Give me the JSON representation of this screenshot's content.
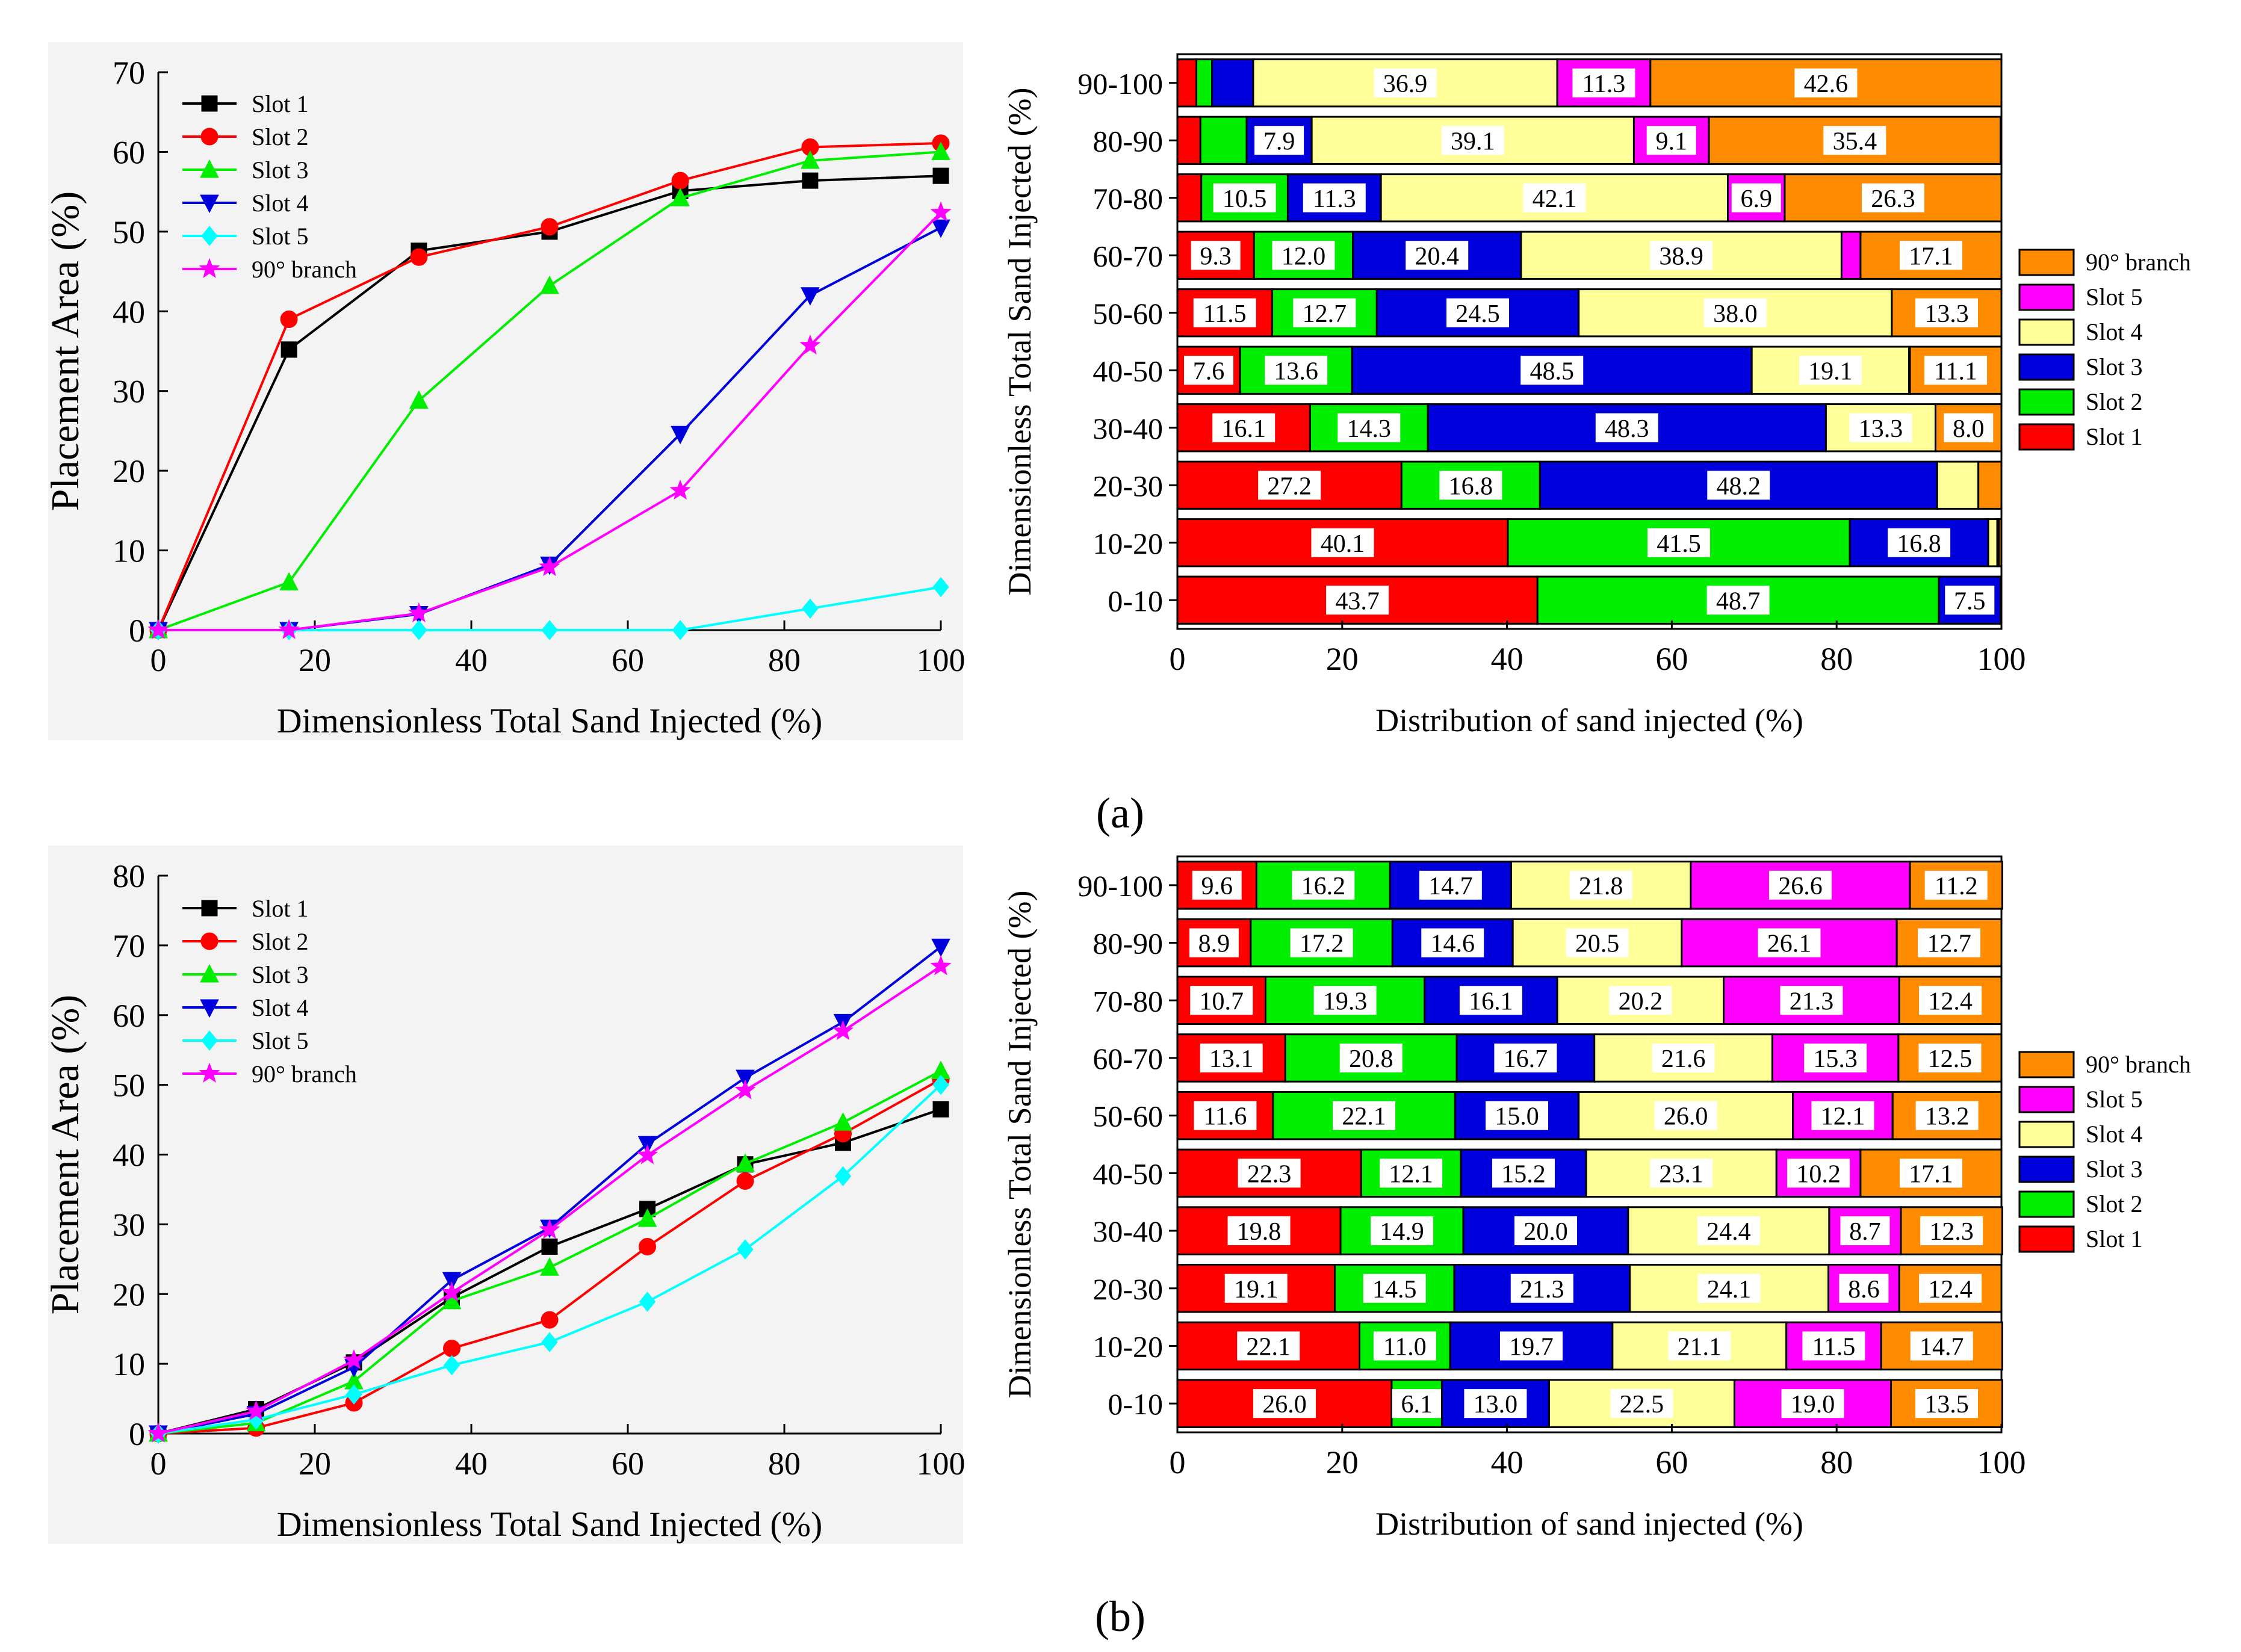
{
  "panel_labels": {
    "a": "(a)",
    "b": "(b)"
  },
  "colors": {
    "Slot 1": "#000000",
    "Slot 2": "#ff0000",
    "Slot 3": "#00ee00",
    "Slot 4": "#0000dd",
    "Slot 5": "#00ffff",
    "90° branch": "#ff00ff",
    "bar": {
      "Slot 1": "#ff0000",
      "Slot 2": "#00ee00",
      "Slot 3": "#0000dd",
      "Slot 4": "#ffff99",
      "Slot 5": "#ff00ff",
      "90° branch": "#ff8c00"
    }
  },
  "chart_data": [
    {
      "id": "a-line",
      "type": "line",
      "xlabel": "Dimensionless Total Sand Injected (%)",
      "ylabel": "Placement Area (%)",
      "xlim": [
        0,
        100
      ],
      "ylim": [
        0,
        70
      ],
      "xticks": [
        0,
        20,
        40,
        60,
        80,
        100
      ],
      "yticks": [
        0,
        10,
        20,
        30,
        40,
        50,
        60,
        70
      ],
      "series": [
        {
          "name": "Slot 1",
          "marker": "square",
          "x": [
            0,
            16.7,
            33.3,
            50,
            66.7,
            83.3,
            100
          ],
          "y": [
            0,
            35.2,
            47.6,
            50.0,
            55.1,
            56.4,
            57.0
          ]
        },
        {
          "name": "Slot 2",
          "marker": "circle",
          "x": [
            0,
            16.7,
            33.3,
            50,
            66.7,
            83.3,
            100
          ],
          "y": [
            0,
            39.0,
            46.8,
            50.6,
            56.4,
            60.6,
            61.1
          ]
        },
        {
          "name": "Slot 3",
          "marker": "triangle-up",
          "x": [
            0,
            16.7,
            33.3,
            50,
            66.7,
            83.3,
            100
          ],
          "y": [
            0,
            6.0,
            28.8,
            43.2,
            54.2,
            58.9,
            60.0
          ]
        },
        {
          "name": "Slot 4",
          "marker": "triangle-down",
          "x": [
            0,
            16.7,
            33.3,
            50,
            66.7,
            83.3,
            100
          ],
          "y": [
            0,
            0,
            2.0,
            8.2,
            24.6,
            42.0,
            50.5
          ]
        },
        {
          "name": "Slot 5",
          "marker": "diamond",
          "x": [
            0,
            16.7,
            33.3,
            50,
            66.7,
            83.3,
            100
          ],
          "y": [
            0,
            0,
            0,
            0,
            0,
            2.7,
            5.4
          ]
        },
        {
          "name": "90° branch",
          "marker": "star",
          "x": [
            0,
            16.7,
            33.3,
            50,
            66.7,
            83.3,
            100
          ],
          "y": [
            0,
            0,
            2.1,
            7.9,
            17.5,
            35.7,
            52.4
          ]
        }
      ],
      "legend": "top-left"
    },
    {
      "id": "a-bar",
      "type": "bar",
      "orientation": "horizontal-stacked",
      "xlabel": "Distribution of sand injected (%)",
      "ylabel": "Dimensionless Total Sand Injected (%)",
      "xlim": [
        0,
        100
      ],
      "xticks": [
        0,
        20,
        40,
        60,
        80,
        100
      ],
      "categories": [
        "0-10",
        "10-20",
        "20-30",
        "30-40",
        "40-50",
        "50-60",
        "60-70",
        "70-80",
        "80-90",
        "90-100"
      ],
      "series": [
        {
          "name": "Slot 1",
          "values": [
            43.7,
            40.1,
            27.2,
            16.1,
            7.6,
            11.5,
            9.3,
            2.9,
            2.8,
            2.3
          ]
        },
        {
          "name": "Slot 2",
          "values": [
            48.7,
            41.5,
            16.8,
            14.3,
            13.6,
            12.7,
            12.0,
            10.5,
            5.6,
            1.9
          ]
        },
        {
          "name": "Slot 3",
          "values": [
            7.5,
            16.8,
            48.2,
            48.3,
            48.5,
            24.5,
            20.4,
            11.3,
            7.9,
            5.0
          ]
        },
        {
          "name": "Slot 4",
          "values": [
            0.1,
            1.1,
            5.0,
            13.3,
            19.1,
            38.0,
            38.9,
            42.1,
            39.1,
            36.9
          ]
        },
        {
          "name": "Slot 5",
          "values": [
            0,
            0.2,
            0,
            0,
            0.1,
            0,
            2.3,
            6.9,
            9.1,
            11.3
          ]
        },
        {
          "name": "90° branch",
          "values": [
            0,
            0.3,
            2.8,
            8.0,
            11.1,
            13.3,
            17.1,
            26.3,
            35.4,
            42.6
          ]
        }
      ],
      "labels": [
        [
          "43.7",
          "48.7",
          "7.5",
          "",
          "",
          ""
        ],
        [
          "40.1",
          "41.5",
          "16.8",
          "",
          "",
          ""
        ],
        [
          "27.2",
          "16.8",
          "48.2",
          "",
          "",
          ""
        ],
        [
          "16.1",
          "14.3",
          "48.3",
          "13.3",
          "",
          "8.0"
        ],
        [
          "7.6",
          "13.6",
          "48.5",
          "19.1",
          "",
          "11.1"
        ],
        [
          "11.5",
          "12.7",
          "24.5",
          "38.0",
          "",
          "13.3"
        ],
        [
          "9.3",
          "12.0",
          "20.4",
          "38.9",
          "",
          "17.1"
        ],
        [
          "",
          "10.5",
          "11.3",
          "42.1",
          "6.9",
          "26.3"
        ],
        [
          "",
          "",
          "7.9",
          "39.1",
          "9.1",
          "35.4"
        ],
        [
          "",
          "",
          "",
          "36.9",
          "11.3",
          "42.6"
        ]
      ],
      "legend_order": [
        "90° branch",
        "Slot 5",
        "Slot 4",
        "Slot 3",
        "Slot 2",
        "Slot 1"
      ],
      "legend": "right"
    },
    {
      "id": "b-line",
      "type": "line",
      "xlabel": "Dimensionless Total Sand Injected (%)",
      "ylabel": "Placement Area (%)",
      "xlim": [
        0,
        100
      ],
      "ylim": [
        0,
        80
      ],
      "xticks": [
        0,
        20,
        40,
        60,
        80,
        100
      ],
      "yticks": [
        0,
        10,
        20,
        30,
        40,
        50,
        60,
        70,
        80
      ],
      "series": [
        {
          "name": "Slot 1",
          "marker": "square",
          "x": [
            0,
            12.5,
            25,
            37.5,
            50,
            62.5,
            75,
            87.5,
            100
          ],
          "y": [
            0,
            3.5,
            10.2,
            19.5,
            26.8,
            32.2,
            38.6,
            41.7,
            46.5
          ]
        },
        {
          "name": "Slot 2",
          "marker": "circle",
          "x": [
            0,
            12.5,
            25,
            37.5,
            50,
            62.5,
            75,
            87.5,
            100
          ],
          "y": [
            0,
            0.8,
            4.4,
            12.2,
            16.3,
            26.8,
            36.2,
            43.0,
            50.8
          ]
        },
        {
          "name": "Slot 3",
          "marker": "triangle-up",
          "x": [
            0,
            12.5,
            25,
            37.5,
            50,
            62.5,
            75,
            87.5,
            100
          ],
          "y": [
            0,
            1.5,
            7.5,
            19.0,
            23.8,
            30.8,
            38.7,
            44.6,
            52.0
          ]
        },
        {
          "name": "Slot 4",
          "marker": "triangle-down",
          "x": [
            0,
            12.5,
            25,
            37.5,
            50,
            62.5,
            75,
            87.5,
            100
          ],
          "y": [
            0,
            2.8,
            9.5,
            22.0,
            29.5,
            41.5,
            51.0,
            59.0,
            69.8
          ]
        },
        {
          "name": "Slot 5",
          "marker": "diamond",
          "x": [
            0,
            12.5,
            25,
            37.5,
            50,
            62.5,
            75,
            87.5,
            100
          ],
          "y": [
            0,
            2.0,
            5.6,
            9.8,
            13.1,
            18.9,
            26.4,
            36.9,
            50.0
          ]
        },
        {
          "name": "90° branch",
          "marker": "star",
          "x": [
            0,
            12.5,
            25,
            37.5,
            50,
            62.5,
            75,
            87.5,
            100
          ],
          "y": [
            0,
            3.2,
            10.5,
            20.2,
            29.2,
            39.9,
            49.2,
            57.7,
            67.0
          ]
        }
      ],
      "legend": "top-left"
    },
    {
      "id": "b-bar",
      "type": "bar",
      "orientation": "horizontal-stacked",
      "xlabel": "Distribution of sand injected (%)",
      "ylabel": "Dimensionless Total Sand Injected (%)",
      "xlim": [
        0,
        100
      ],
      "xticks": [
        0,
        20,
        40,
        60,
        80,
        100
      ],
      "categories": [
        "0-10",
        "10-20",
        "20-30",
        "30-40",
        "40-50",
        "50-60",
        "60-70",
        "70-80",
        "80-90",
        "90-100"
      ],
      "series": [
        {
          "name": "Slot 1",
          "values": [
            26.0,
            22.1,
            19.1,
            19.8,
            22.3,
            11.6,
            13.1,
            10.7,
            8.9,
            9.6
          ]
        },
        {
          "name": "Slot 2",
          "values": [
            6.1,
            11.0,
            14.5,
            14.9,
            12.1,
            22.1,
            20.8,
            19.3,
            17.2,
            16.2
          ]
        },
        {
          "name": "Slot 3",
          "values": [
            13.0,
            19.7,
            21.3,
            20.0,
            15.2,
            15.0,
            16.7,
            16.1,
            14.6,
            14.7
          ]
        },
        {
          "name": "Slot 4",
          "values": [
            22.5,
            21.1,
            24.1,
            24.4,
            23.1,
            26.0,
            21.6,
            20.2,
            20.5,
            21.8
          ]
        },
        {
          "name": "Slot 5",
          "values": [
            19.0,
            11.5,
            8.6,
            8.7,
            10.2,
            12.1,
            15.3,
            21.3,
            26.1,
            26.6
          ]
        },
        {
          "name": "90° branch",
          "values": [
            13.5,
            14.7,
            12.4,
            12.3,
            17.1,
            13.2,
            12.5,
            12.4,
            12.7,
            11.2
          ]
        }
      ],
      "labels": [
        [
          "26.0",
          "6.1",
          "13.0",
          "22.5",
          "19.0",
          "13.5"
        ],
        [
          "22.1",
          "11.0",
          "19.7",
          "21.1",
          "11.5",
          "14.7"
        ],
        [
          "19.1",
          "14.5",
          "21.3",
          "24.1",
          "8.6",
          "12.4"
        ],
        [
          "19.8",
          "14.9",
          "20.0",
          "24.4",
          "8.7",
          "12.3"
        ],
        [
          "22.3",
          "12.1",
          "15.2",
          "23.1",
          "10.2",
          "17.1"
        ],
        [
          "11.6",
          "22.1",
          "15.0",
          "26.0",
          "12.1",
          "13.2"
        ],
        [
          "13.1",
          "20.8",
          "16.7",
          "21.6",
          "15.3",
          "12.5"
        ],
        [
          "10.7",
          "19.3",
          "16.1",
          "20.2",
          "21.3",
          "12.4"
        ],
        [
          "8.9",
          "17.2",
          "14.6",
          "20.5",
          "26.1",
          "12.7"
        ],
        [
          "9.6",
          "16.2",
          "14.7",
          "21.8",
          "26.6",
          "11.2"
        ]
      ],
      "legend_order": [
        "90° branch",
        "Slot 5",
        "Slot 4",
        "Slot 3",
        "Slot 2",
        "Slot 1"
      ],
      "legend": "right"
    }
  ]
}
